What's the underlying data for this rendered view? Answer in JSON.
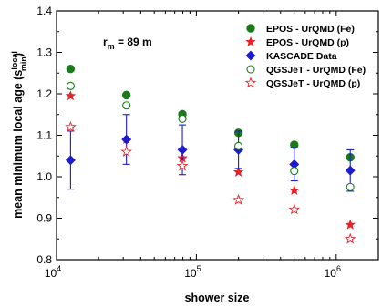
{
  "chart_data": {
    "type": "scatter",
    "xlabel": "shower size",
    "ylabel": "mean minimum local age (s",
    "ylabel_sup": "local",
    "ylabel_sub": "min",
    "ylabel_close": ")",
    "xscale": "log",
    "xlim": [
      10000,
      2000000
    ],
    "ylim": [
      0.8,
      1.4
    ],
    "yticks": [
      "0.8",
      "0.9",
      "1.0",
      "1.1",
      "1.2",
      "1.3",
      "1.4"
    ],
    "xticks": [
      {
        "base": "10",
        "exp": "4",
        "value": 10000
      },
      {
        "base": "10",
        "exp": "5",
        "value": 100000
      },
      {
        "base": "10",
        "exp": "6",
        "value": 1000000
      }
    ],
    "annotation": {
      "prefix": "r",
      "sub": "m",
      "suffix": " = 89  m"
    },
    "legend_position": "top-right",
    "grid": false,
    "series": [
      {
        "name": "EPOS - UrQMD (Fe)",
        "marker": "filled-circle",
        "color": "#1a7a1a",
        "x": [
          12600,
          31600,
          79400,
          200000,
          501000,
          1260000
        ],
        "y": [
          1.26,
          1.197,
          1.151,
          1.106,
          1.077,
          1.047
        ]
      },
      {
        "name": "EPOS - UrQMD (p)",
        "marker": "filled-star",
        "color": "#e8202a",
        "x": [
          12600,
          31600,
          79400,
          200000,
          501000,
          1260000
        ],
        "y": [
          1.195,
          1.09,
          1.045,
          1.011,
          0.967,
          0.884
        ]
      },
      {
        "name": "KASCADE Data",
        "marker": "filled-diamond",
        "color": "#1c1ccc",
        "x": [
          12600,
          31600,
          79400,
          200000,
          501000,
          1260000
        ],
        "y": [
          1.04,
          1.09,
          1.065,
          1.065,
          1.03,
          1.015
        ],
        "err": [
          0.07,
          0.06,
          0.06,
          0.045,
          0.04,
          0.05
        ]
      },
      {
        "name": "QGSJeT - UrQMD (Fe)",
        "marker": "open-circle",
        "color": "#1a7a1a",
        "x": [
          12600,
          31600,
          79400,
          200000,
          501000,
          1260000
        ],
        "y": [
          1.219,
          1.172,
          1.14,
          1.074,
          1.014,
          0.975
        ]
      },
      {
        "name": "QGSJeT - UrQMD (p)",
        "marker": "open-star",
        "color": "#e8202a",
        "x": [
          12600,
          31600,
          79400,
          200000,
          501000,
          1260000
        ],
        "y": [
          1.12,
          1.06,
          1.026,
          0.944,
          0.921,
          0.85
        ]
      }
    ]
  }
}
